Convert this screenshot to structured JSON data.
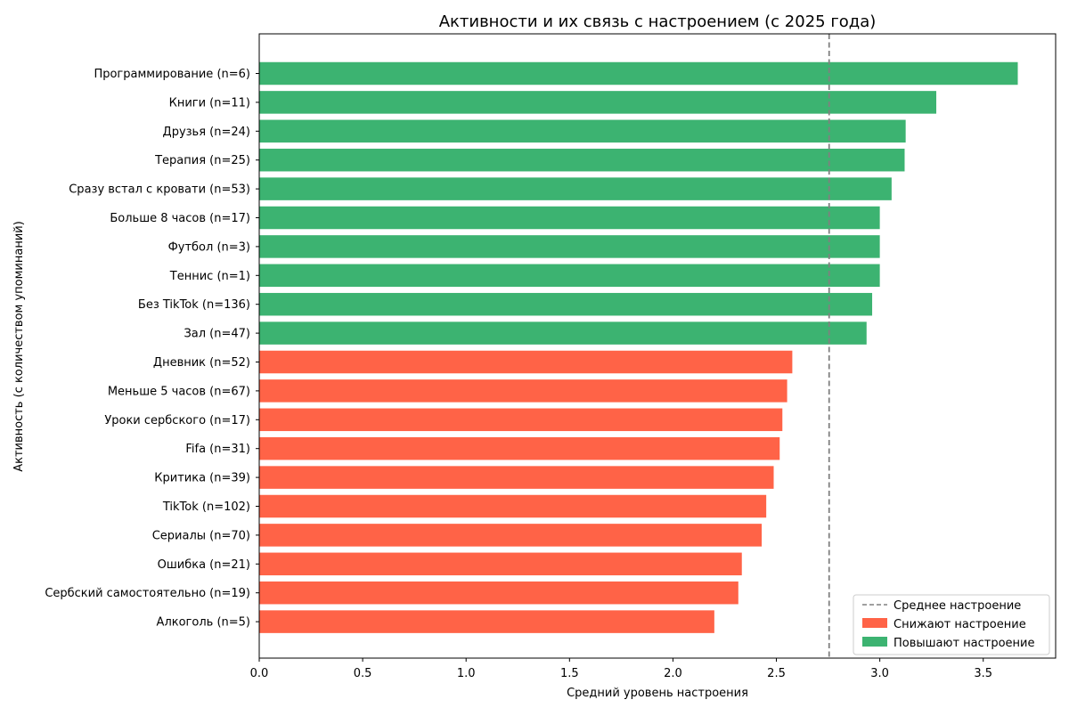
{
  "chart_data": {
    "type": "bar",
    "orientation": "horizontal",
    "title": "Активности и их связь с настроением (с 2025 года)",
    "xlabel": "Средний уровень настроения",
    "ylabel": "Активность (с количеством упоминаний)",
    "xlim": [
      0,
      3.85
    ],
    "xticks": [
      0.0,
      0.5,
      1.0,
      1.5,
      2.0,
      2.5,
      3.0,
      3.5
    ],
    "xtick_labels": [
      "0.0",
      "0.5",
      "1.0",
      "1.5",
      "2.0",
      "2.5",
      "3.0",
      "3.5"
    ],
    "grid": false,
    "legend_position": "bottom-right",
    "average_line": {
      "value": 2.755,
      "label": "Среднее настроение",
      "color": "#808080"
    },
    "groups": [
      {
        "name": "Снижают настроение",
        "color": "#ff6347"
      },
      {
        "name": "Повышают настроение",
        "color": "#3cb371"
      }
    ],
    "categories": [
      "Программирование (n=6)",
      "Книги (n=11)",
      "Друзья (n=24)",
      "Терапия (n=25)",
      "Сразу встал с кровати (n=53)",
      "Больше 8 часов (n=17)",
      "Футбол (n=3)",
      "Теннис (n=1)",
      "Без TikTok (n=136)",
      "Зал (n=47)",
      "Дневник (n=52)",
      "Меньше 5 часов (n=67)",
      "Уроки сербского (n=17)",
      "Fifa (n=31)",
      "Критика (n=39)",
      "TikTok (n=102)",
      "Сериалы (n=70)",
      "Ошибка (n=21)",
      "Сербский самостоятельно (n=19)",
      "Алкоголь (n=5)"
    ],
    "values": [
      3.667,
      3.273,
      3.125,
      3.12,
      3.057,
      3.0,
      3.0,
      3.0,
      2.963,
      2.936,
      2.577,
      2.552,
      2.529,
      2.516,
      2.487,
      2.451,
      2.429,
      2.333,
      2.316,
      2.2
    ],
    "group_index": [
      1,
      1,
      1,
      1,
      1,
      1,
      1,
      1,
      1,
      1,
      0,
      0,
      0,
      0,
      0,
      0,
      0,
      0,
      0,
      0
    ]
  }
}
